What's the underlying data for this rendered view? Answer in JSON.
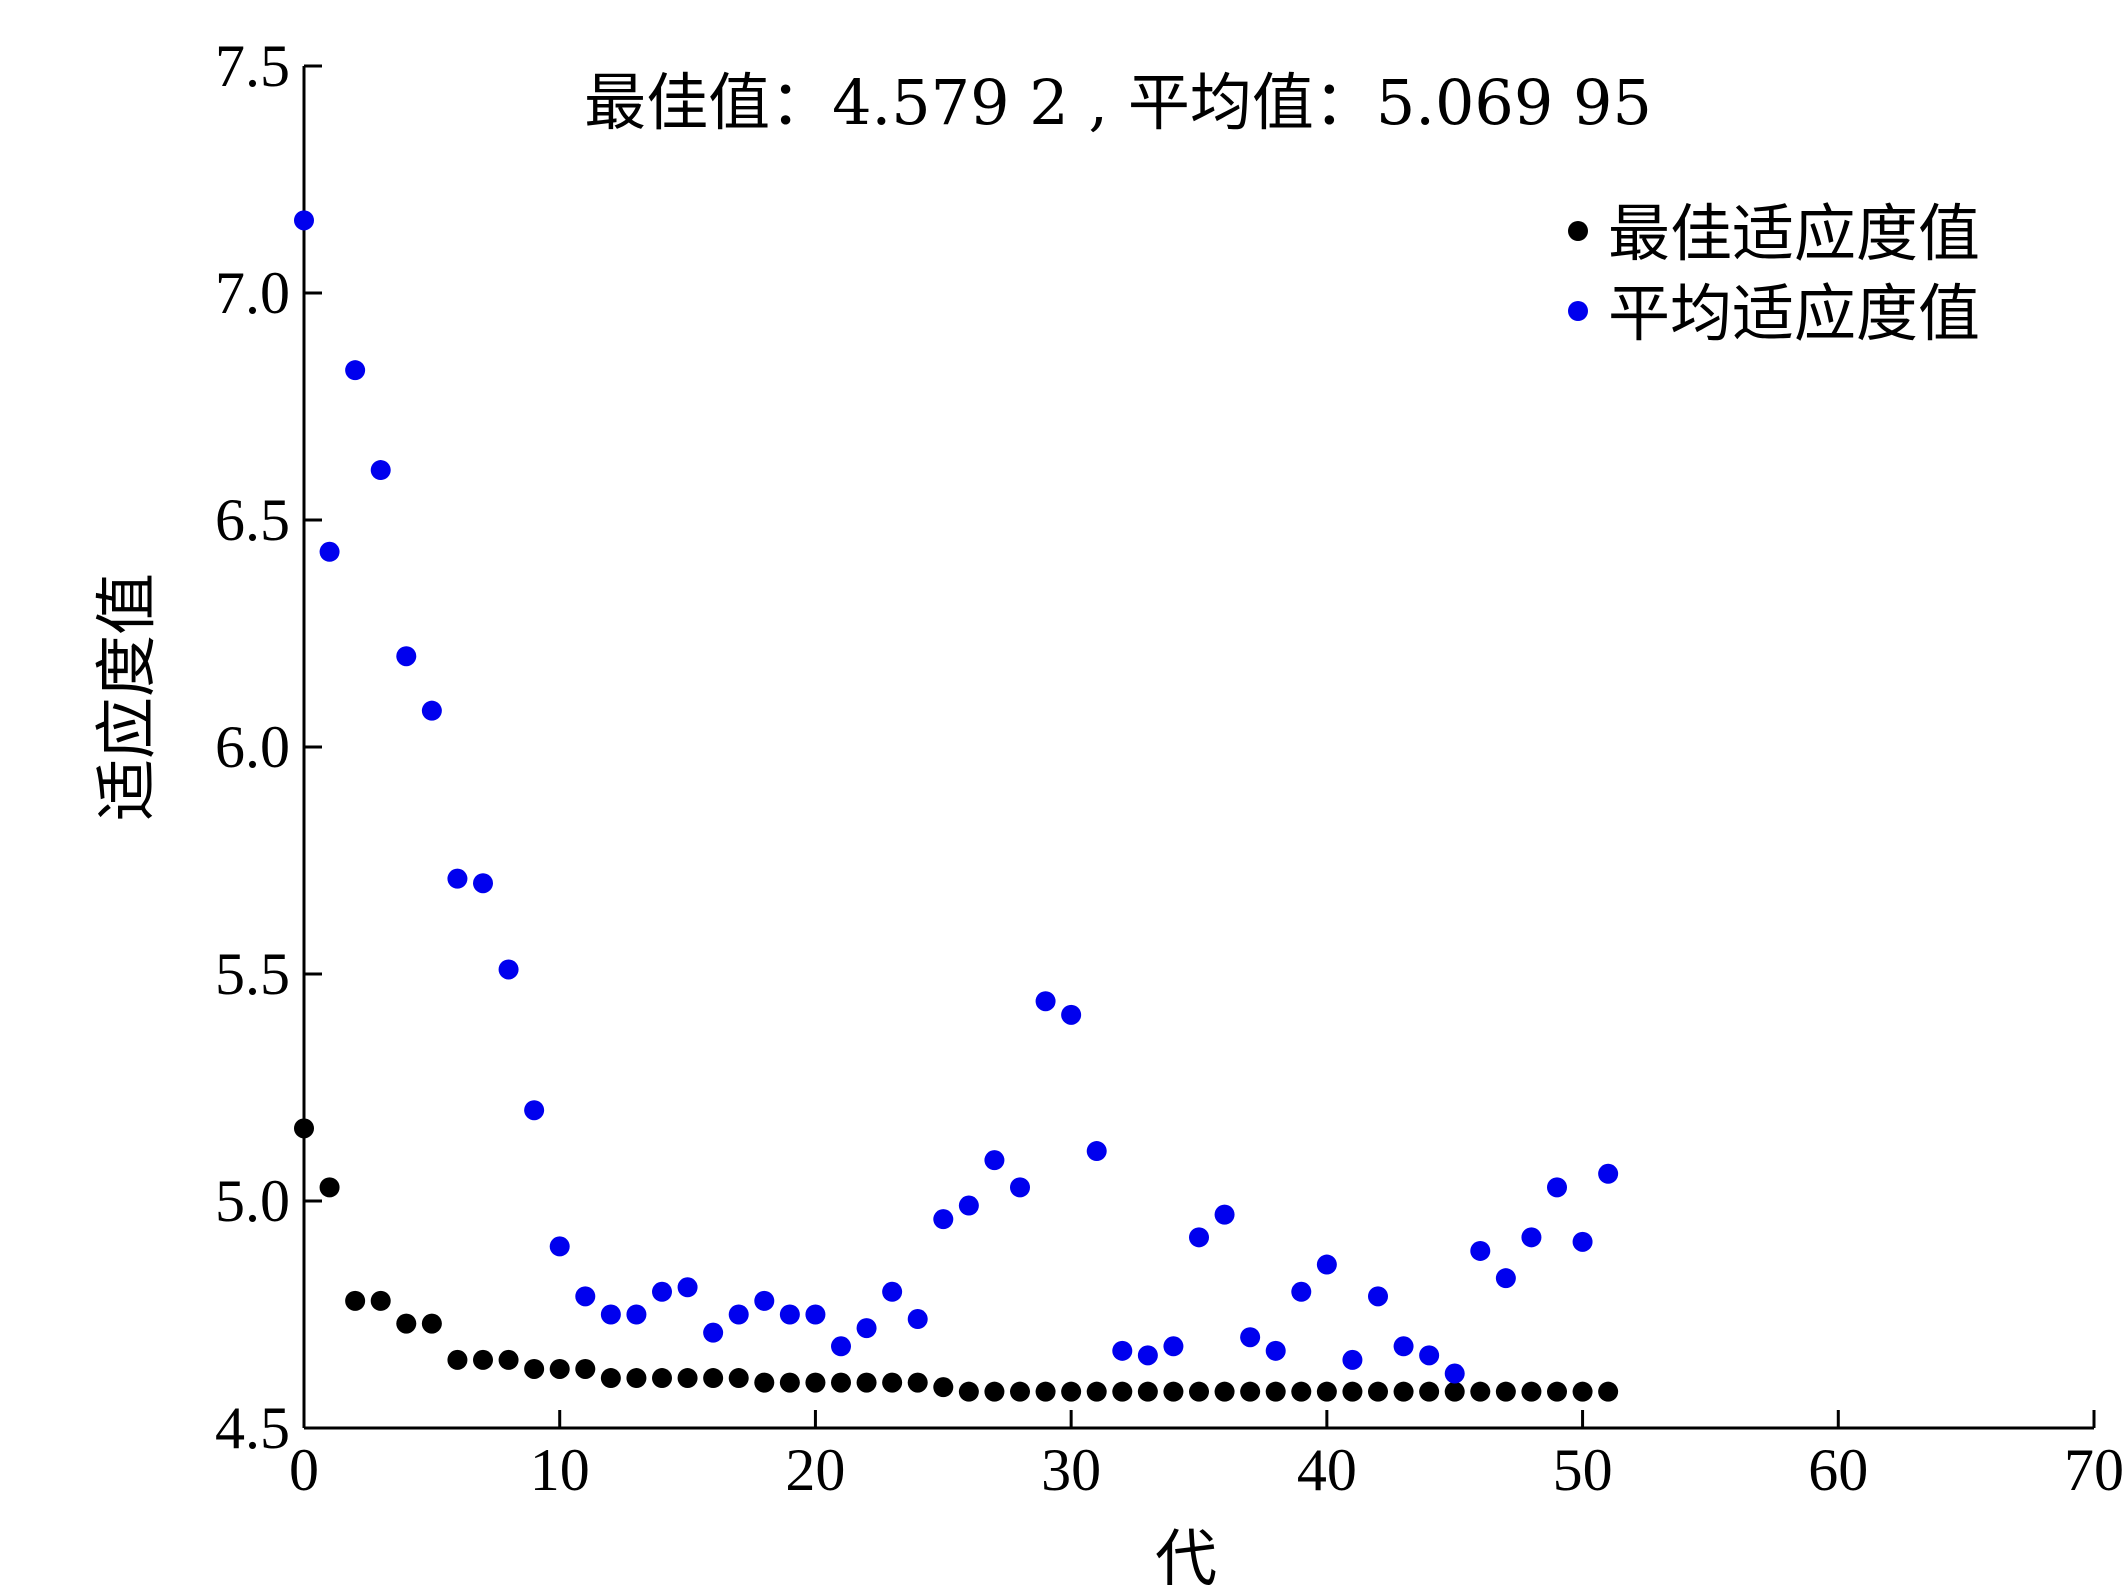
{
  "chart_data": {
    "type": "scatter",
    "title": "最佳值：4.579 2 , 平均值：5.069 95",
    "xlabel": "代",
    "ylabel": "适应度值",
    "xlim": [
      0,
      70
    ],
    "ylim": [
      4.5,
      7.5
    ],
    "x_ticks": [
      0,
      10,
      20,
      30,
      40,
      50,
      60,
      70
    ],
    "y_ticks": [
      4.5,
      5.0,
      5.5,
      6.0,
      6.5,
      7.0,
      7.5
    ],
    "x_tick_labels": [
      "0",
      "10",
      "20",
      "30",
      "40",
      "50",
      "60",
      "70"
    ],
    "y_tick_labels": [
      "4.5",
      "5.0",
      "5.5",
      "6.0",
      "6.5",
      "7.0",
      "7.5"
    ],
    "legend_position": "top-right",
    "x": [
      0,
      1,
      2,
      3,
      4,
      5,
      6,
      7,
      8,
      9,
      10,
      11,
      12,
      13,
      14,
      15,
      16,
      17,
      18,
      19,
      20,
      21,
      22,
      23,
      24,
      25,
      26,
      27,
      28,
      29,
      30,
      31,
      32,
      33,
      34,
      35,
      36,
      37,
      38,
      39,
      40,
      41,
      42,
      43,
      44,
      45,
      46,
      47,
      48,
      49,
      50,
      51
    ],
    "series": [
      {
        "name": "最佳适应度值",
        "color": "#000000",
        "values": [
          5.16,
          5.03,
          4.78,
          4.78,
          4.73,
          4.73,
          4.65,
          4.65,
          4.65,
          4.63,
          4.63,
          4.63,
          4.61,
          4.61,
          4.61,
          4.61,
          4.61,
          4.61,
          4.6,
          4.6,
          4.6,
          4.6,
          4.6,
          4.6,
          4.6,
          4.59,
          4.58,
          4.58,
          4.58,
          4.58,
          4.58,
          4.58,
          4.58,
          4.58,
          4.58,
          4.58,
          4.58,
          4.58,
          4.58,
          4.58,
          4.58,
          4.58,
          4.58,
          4.58,
          4.58,
          4.58,
          4.58,
          4.58,
          4.58,
          4.58,
          4.58,
          4.58
        ]
      },
      {
        "name": "平均适应度值",
        "color": "#0000ee",
        "values": [
          7.16,
          6.43,
          6.83,
          6.61,
          6.2,
          6.08,
          5.71,
          5.7,
          5.51,
          5.2,
          4.9,
          4.79,
          4.75,
          4.75,
          4.8,
          4.81,
          4.71,
          4.75,
          4.78,
          4.75,
          4.75,
          4.68,
          4.72,
          4.8,
          4.74,
          4.96,
          4.99,
          5.09,
          5.03,
          5.44,
          5.41,
          5.11,
          4.67,
          4.66,
          4.68,
          4.92,
          4.97,
          4.7,
          4.67,
          4.8,
          4.86,
          4.65,
          4.79,
          4.68,
          4.66,
          4.62,
          4.89,
          4.83,
          4.92,
          5.03,
          4.91,
          5.06
        ]
      }
    ]
  }
}
